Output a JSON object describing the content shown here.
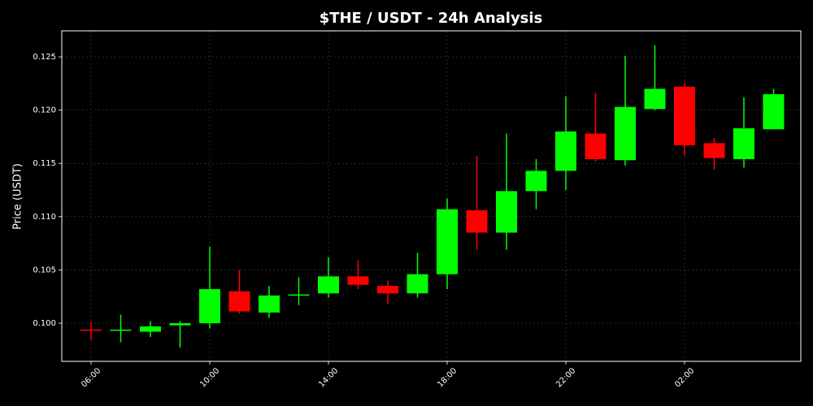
{
  "chart_data": {
    "type": "candlestick",
    "title": "$THE / USDT - 24h Analysis",
    "y_label": "Price (USDT)",
    "categories": [
      "06:00",
      null,
      null,
      null,
      "10:00",
      null,
      null,
      null,
      "14:00",
      null,
      null,
      null,
      "18:00",
      null,
      null,
      null,
      "22:00",
      null,
      null,
      null,
      "02:00",
      null,
      null,
      null
    ],
    "open": [
      0.0994,
      0.0993,
      0.0992,
      0.0998,
      0.1,
      0.103,
      0.101,
      0.1026,
      0.1028,
      0.1044,
      0.1035,
      0.1028,
      0.1046,
      0.1106,
      0.1085,
      0.1124,
      0.1143,
      0.1178,
      0.1153,
      0.1201,
      0.1222,
      0.1169,
      0.1154,
      0.1182
    ],
    "high": [
      0.1001,
      0.1008,
      0.1002,
      0.1002,
      0.1072,
      0.105,
      0.1035,
      0.1043,
      0.1062,
      0.1059,
      0.104,
      0.1066,
      0.1117,
      0.1157,
      0.1178,
      0.1154,
      0.1213,
      0.1216,
      0.1251,
      0.1261,
      0.1226,
      0.1174,
      0.1212,
      0.122
    ],
    "low": [
      0.0984,
      0.0982,
      0.0987,
      0.0977,
      0.0995,
      0.1009,
      0.1005,
      0.1017,
      0.1024,
      0.1032,
      0.1018,
      0.1024,
      0.1032,
      0.1069,
      0.1069,
      0.1107,
      0.1125,
      0.1152,
      0.1148,
      0.12,
      0.1157,
      0.1144,
      0.1146,
      0.1182
    ],
    "close": [
      0.0993,
      0.0994,
      0.0997,
      0.1,
      0.1032,
      0.1011,
      0.1026,
      0.1027,
      0.1044,
      0.1036,
      0.1028,
      0.1046,
      0.1107,
      0.1085,
      0.1124,
      0.1143,
      0.118,
      0.1154,
      0.1203,
      0.122,
      0.1167,
      0.1155,
      0.1183,
      0.1215
    ],
    "up_color": "#00ff00",
    "down_color": "#ff0000",
    "ylim": [
      0.09642,
      0.12744
    ],
    "yticks": [
      {
        "value": 0.1,
        "label": "0.100"
      },
      0.105,
      {
        "value": 0.11,
        "label": "0.110"
      },
      0.115,
      {
        "value": 0.12,
        "label": "0.120"
      },
      0.125
    ],
    "grid": true
  }
}
